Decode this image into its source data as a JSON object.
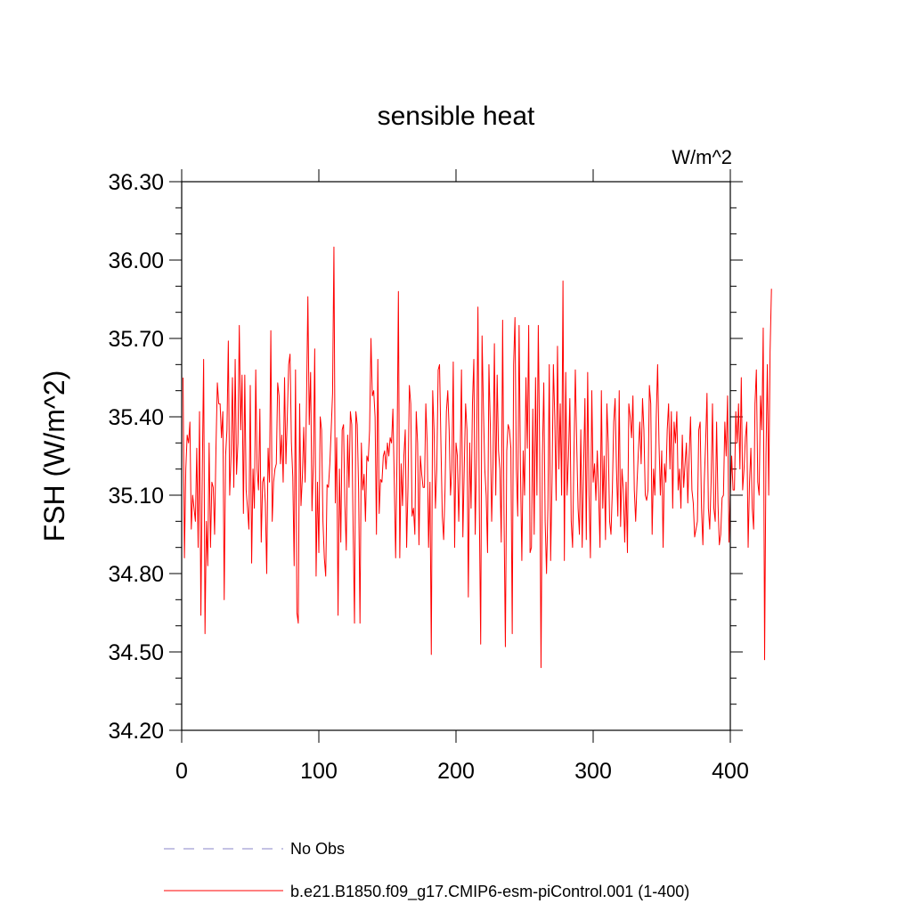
{
  "chart_data": {
    "type": "line",
    "title": "sensible heat",
    "units_label": "W/m^2",
    "ylabel": "FSH  (W/m^2)",
    "xlabel": "",
    "xlim": [
      0,
      400
    ],
    "ylim": [
      34.2,
      36.3
    ],
    "x_ticks": [
      0,
      100,
      200,
      300,
      400
    ],
    "x_tick_labels": [
      "0",
      "100",
      "200",
      "300",
      "400"
    ],
    "y_ticks": [
      34.2,
      34.5,
      34.8,
      35.1,
      35.4,
      35.7,
      36.0,
      36.3
    ],
    "y_tick_labels": [
      "34.20",
      "34.50",
      "34.80",
      "35.10",
      "35.40",
      "35.70",
      "36.00",
      "36.30"
    ],
    "grid": false,
    "legend_position": "bottom",
    "legend": [
      {
        "label": "No Obs",
        "color": "#8a86c8",
        "style": "dashed"
      },
      {
        "label": "b.e21.B1850.f09_g17.CMIP6-esm-piControl.001 (1-400)",
        "color": "#ff0000",
        "style": "solid"
      }
    ],
    "series": [
      {
        "name": "b.e21.B1850.f09_g17.CMIP6-esm-piControl.001 (1-400)",
        "color": "#ff0000",
        "x_start": 1,
        "values": [
          35.55,
          34.86,
          35.2,
          35.33,
          35.3,
          35.38,
          34.97,
          35.1,
          35.05,
          35.0,
          35.28,
          34.9,
          35.42,
          34.64,
          35.18,
          35.62,
          34.57,
          35.0,
          34.83,
          35.3,
          34.9,
          35.15,
          35.13,
          34.95,
          35.28,
          35.53,
          35.45,
          35.45,
          35.32,
          35.42,
          34.7,
          35.25,
          35.35,
          35.69,
          35.1,
          35.25,
          35.55,
          35.13,
          35.62,
          35.18,
          35.3,
          35.75,
          35.35,
          35.56,
          35.03,
          35.56,
          35.12,
          35.05,
          34.97,
          35.52,
          34.84,
          35.2,
          35.05,
          35.58,
          35.2,
          35.12,
          35.43,
          34.92,
          35.15,
          35.17,
          35.07,
          34.8,
          35.28,
          35.15,
          35.73,
          35.0,
          35.15,
          35.2,
          35.22,
          35.53,
          35.48,
          35.22,
          35.33,
          35.15,
          35.55,
          35.22,
          35.4,
          35.6,
          35.64,
          35.3,
          35.17,
          34.83,
          35.58,
          34.65,
          34.61,
          35.45,
          35.06,
          35.17,
          35.36,
          35.15,
          35.45,
          35.86,
          35.37,
          35.57,
          35.04,
          35.22,
          35.66,
          34.79,
          35.15,
          34.88,
          35.4,
          35.35,
          35.0,
          34.86,
          34.79,
          35.14,
          35.13,
          35.22,
          35.35,
          35.49,
          36.05,
          35.07,
          35.32,
          34.64,
          35.2,
          34.92,
          35.35,
          35.37,
          35.06,
          34.89,
          35.33,
          35.13,
          35.42,
          35.37,
          34.97,
          34.61,
          35.42,
          35.37,
          35.12,
          34.61,
          35.3,
          35.12,
          35.18,
          35.0,
          35.25,
          35.23,
          35.35,
          35.7,
          35.48,
          35.5,
          35.4,
          34.95,
          35.62,
          35.03,
          35.16,
          35.15,
          35.25,
          35.27,
          35.2,
          35.3,
          35.25,
          35.32,
          35.3,
          35.43,
          35.15,
          34.86,
          35.25,
          35.88,
          34.86,
          35.22,
          35.06,
          35.25,
          35.35,
          34.9,
          35.13,
          35.52,
          35.45,
          35.02,
          35.05,
          34.95,
          35.42,
          35.3,
          34.91,
          35.25,
          35.18,
          35.13,
          35.13,
          35.45,
          35.3,
          34.9,
          35.15,
          34.49,
          35.5,
          35.35,
          35.05,
          35.2,
          35.58,
          35.6,
          35.3,
          35.02,
          34.93,
          35.12,
          35.42,
          35.5,
          35.35,
          35.1,
          35.2,
          35.61,
          34.9,
          35.3,
          35.25,
          35.0,
          35.22,
          35.58,
          34.94,
          35.2,
          35.45,
          35.35,
          34.71,
          35.3,
          35.05,
          35.45,
          35.62,
          34.95,
          35.25,
          35.82,
          35.05,
          34.53,
          35.71,
          35.43,
          35.2,
          35.1,
          34.88,
          35.6,
          35.37,
          35.0,
          35.22,
          35.68,
          35.1,
          35.56,
          35.27,
          35.2,
          34.92,
          35.77,
          35.03,
          34.52,
          35.27,
          35.37,
          35.35,
          35.28,
          34.57,
          35.6,
          35.78,
          35.2,
          35.02,
          35.75,
          35.2,
          34.85,
          35.27,
          35.1,
          35.55,
          35.28,
          35.75,
          34.88,
          34.9,
          35.43,
          34.95,
          35.55,
          35.1,
          35.75,
          35.27,
          34.44,
          35.25,
          35.53,
          35.0,
          34.8,
          35.05,
          35.6,
          34.85,
          35.15,
          35.6,
          35.4,
          35.08,
          35.67,
          35.2,
          35.45,
          35.1,
          35.92,
          34.85,
          35.57,
          35.1,
          35.25,
          35.47,
          35.0,
          34.9,
          35.25,
          35.58,
          35.3,
          35.05,
          34.95,
          35.35,
          34.9,
          35.2,
          35.47,
          34.93,
          35.57,
          35.1,
          34.86,
          35.5,
          35.15,
          35.22,
          35.08,
          35.27,
          35.1,
          34.9,
          35.5,
          35.05,
          35.25,
          34.93,
          35.45,
          35.3,
          35.0,
          34.95,
          35.12,
          35.38,
          35.47,
          35.2,
          35.02,
          35.5,
          34.98,
          35.2,
          35.12,
          34.92,
          35.15,
          34.88,
          35.45,
          35.4,
          35.32,
          35.48,
          35.12,
          35.0,
          35.15,
          35.27,
          35.38,
          35.22,
          35.47,
          35.35,
          35.1,
          35.08,
          35.12,
          35.52,
          35.45,
          34.95,
          35.2,
          35.1,
          35.4,
          35.6,
          35.3,
          35.1,
          35.27,
          34.9,
          35.22,
          35.15,
          35.35,
          35.45,
          35.2,
          35.42,
          35.05,
          35.38,
          35.3,
          35.42,
          35.12,
          35.2,
          35.05,
          35.33,
          35.13,
          35.22,
          35.3,
          35.07,
          35.25,
          35.4,
          35.12,
          35.07,
          34.94,
          34.97,
          35.0,
          35.35,
          35.38,
          35.05,
          34.91,
          35.15,
          35.3,
          35.49,
          35.05,
          34.97,
          35.15,
          35.45,
          35.05,
          35.0,
          35.38,
          35.07,
          34.91,
          34.95,
          35.09,
          35.1,
          35.38,
          35.25,
          35.48,
          34.92,
          35.1,
          35.25,
          35.12,
          35.12,
          35.42,
          35.3,
          35.45,
          35.2,
          35.55,
          35.12,
          35.2,
          35.32,
          35.38,
          34.9,
          35.15,
          35.28,
          35.05,
          34.97,
          35.45,
          35.58,
          35.15,
          35.1,
          35.48,
          35.35,
          35.74,
          34.47,
          35.25,
          35.6,
          35.1,
          35.65,
          35.89
        ]
      }
    ]
  }
}
